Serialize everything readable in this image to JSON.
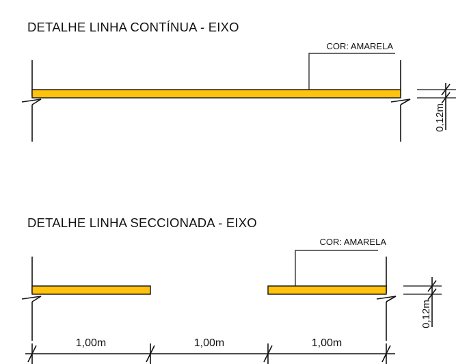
{
  "colors": {
    "stripe": "#FFC20E",
    "stroke": "#111111",
    "background": "#FFFFFF"
  },
  "detail_continuous": {
    "title": "DETALHE LINHA CONTÍNUA - EIXO",
    "callout": "COR: AMARELA",
    "width_label": "0,12m"
  },
  "detail_dashed": {
    "title": "DETALHE LINHA SECCIONADA - EIXO",
    "callout": "COR: AMARELA",
    "width_label": "0,12m",
    "segment_labels": [
      "1,00m",
      "1,00m",
      "1,00m"
    ]
  }
}
